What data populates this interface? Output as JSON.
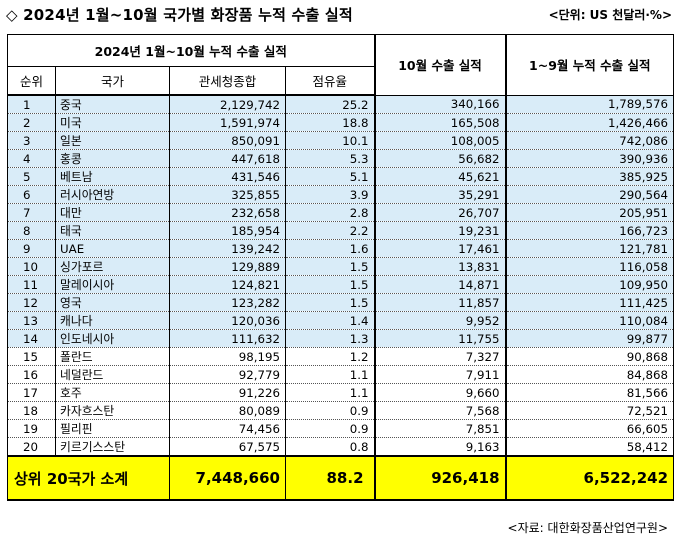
{
  "title": "◇ 2024년 1월~10월 국가별 화장품 누적 수출 실적",
  "unit": "<단위: US 천달러·%>",
  "header": {
    "group_label": "2024년 1월~10월 누적 수출 실적",
    "oct_label": "10월 수출 실적",
    "jan_sep_label": "1~9월 누적 수출 실적",
    "col_rank": "순위",
    "col_country": "국가",
    "col_total": "관세청종합",
    "col_share": "점유율"
  },
  "rows": [
    {
      "rank": "1",
      "country": "중국",
      "total": "2,129,742",
      "share": "25.2",
      "oct": "340,166",
      "jan_sep": "1,789,576"
    },
    {
      "rank": "2",
      "country": "미국",
      "total": "1,591,974",
      "share": "18.8",
      "oct": "165,508",
      "jan_sep": "1,426,466"
    },
    {
      "rank": "3",
      "country": "일본",
      "total": "850,091",
      "share": "10.1",
      "oct": "108,005",
      "jan_sep": "742,086"
    },
    {
      "rank": "4",
      "country": "홍콩",
      "total": "447,618",
      "share": "5.3",
      "oct": "56,682",
      "jan_sep": "390,936"
    },
    {
      "rank": "5",
      "country": "베트남",
      "total": "431,546",
      "share": "5.1",
      "oct": "45,621",
      "jan_sep": "385,925"
    },
    {
      "rank": "6",
      "country": "러시아연방",
      "total": "325,855",
      "share": "3.9",
      "oct": "35,291",
      "jan_sep": "290,564"
    },
    {
      "rank": "7",
      "country": "대만",
      "total": "232,658",
      "share": "2.8",
      "oct": "26,707",
      "jan_sep": "205,951"
    },
    {
      "rank": "8",
      "country": "태국",
      "total": "185,954",
      "share": "2.2",
      "oct": "19,231",
      "jan_sep": "166,723"
    },
    {
      "rank": "9",
      "country": "UAE",
      "total": "139,242",
      "share": "1.6",
      "oct": "17,461",
      "jan_sep": "121,781"
    },
    {
      "rank": "10",
      "country": "싱가포르",
      "total": "129,889",
      "share": "1.5",
      "oct": "13,831",
      "jan_sep": "116,058"
    },
    {
      "rank": "11",
      "country": "말레이시아",
      "total": "124,821",
      "share": "1.5",
      "oct": "14,871",
      "jan_sep": "109,950"
    },
    {
      "rank": "12",
      "country": "영국",
      "total": "123,282",
      "share": "1.5",
      "oct": "11,857",
      "jan_sep": "111,425"
    },
    {
      "rank": "13",
      "country": "캐나다",
      "total": "120,036",
      "share": "1.4",
      "oct": "9,952",
      "jan_sep": "110,084"
    },
    {
      "rank": "14",
      "country": "인도네시아",
      "total": "111,632",
      "share": "1.3",
      "oct": "11,755",
      "jan_sep": "99,877"
    },
    {
      "rank": "15",
      "country": "폴란드",
      "total": "98,195",
      "share": "1.2",
      "oct": "7,327",
      "jan_sep": "90,868"
    },
    {
      "rank": "16",
      "country": "네덜란드",
      "total": "92,779",
      "share": "1.1",
      "oct": "7,911",
      "jan_sep": "84,868"
    },
    {
      "rank": "17",
      "country": "호주",
      "total": "91,226",
      "share": "1.1",
      "oct": "9,660",
      "jan_sep": "81,566"
    },
    {
      "rank": "18",
      "country": "카자흐스탄",
      "total": "80,089",
      "share": "0.9",
      "oct": "7,568",
      "jan_sep": "72,521"
    },
    {
      "rank": "19",
      "country": "필리핀",
      "total": "74,456",
      "share": "0.9",
      "oct": "7,851",
      "jan_sep": "66,605"
    },
    {
      "rank": "20",
      "country": "키르기스스탄",
      "total": "67,575",
      "share": "0.8",
      "oct": "9,163",
      "jan_sep": "58,412"
    }
  ],
  "highlighted_rows": 14,
  "footer": {
    "label": "상위 20국가 소계",
    "total": "7,448,660",
    "share": "88.2",
    "oct": "926,418",
    "jan_sep": "6,522,242"
  },
  "source": "<자료: 대한화장품산업연구원>",
  "colors": {
    "row_highlight": "#d9ecf8",
    "footer_bg": "#ffff00"
  }
}
